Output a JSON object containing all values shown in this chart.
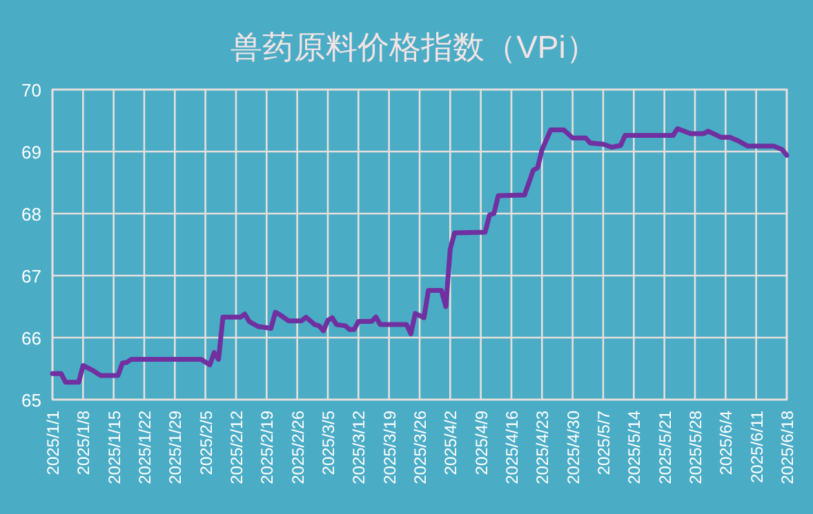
{
  "chart_data": {
    "type": "line",
    "title": "兽药原料价格指数（VPi）",
    "x": [
      "2025-01-01",
      "2025-01-03",
      "2025-01-04",
      "2025-01-07",
      "2025-01-08",
      "2025-01-10",
      "2025-01-12",
      "2025-01-16",
      "2025-01-17",
      "2025-01-18",
      "2025-01-19",
      "2025-02-04",
      "2025-02-06",
      "2025-02-07",
      "2025-02-08",
      "2025-02-09",
      "2025-02-13",
      "2025-02-14",
      "2025-02-15",
      "2025-02-17",
      "2025-02-20",
      "2025-02-21",
      "2025-02-22",
      "2025-02-24",
      "2025-02-27",
      "2025-02-28",
      "2025-03-02",
      "2025-03-03",
      "2025-03-04",
      "2025-03-05",
      "2025-03-06",
      "2025-03-07",
      "2025-03-09",
      "2025-03-10",
      "2025-03-11",
      "2025-03-12",
      "2025-03-15",
      "2025-03-16",
      "2025-03-17",
      "2025-03-23",
      "2025-03-24",
      "2025-03-25",
      "2025-03-27",
      "2025-03-28",
      "2025-03-31",
      "2025-04-01",
      "2025-04-02",
      "2025-04-03",
      "2025-04-10",
      "2025-04-11",
      "2025-04-12",
      "2025-04-13",
      "2025-04-19",
      "2025-04-21",
      "2025-04-22",
      "2025-04-23",
      "2025-04-25",
      "2025-04-28",
      "2025-04-30",
      "2025-05-03",
      "2025-05-04",
      "2025-05-07",
      "2025-05-09",
      "2025-05-11",
      "2025-05-12",
      "2025-05-23",
      "2025-05-24",
      "2025-05-27",
      "2025-05-30",
      "2025-05-31",
      "2025-06-03",
      "2025-06-05",
      "2025-06-07",
      "2025-06-09",
      "2025-06-15",
      "2025-06-17",
      "2025-06-18"
    ],
    "series": [
      {
        "color": "#7030a0",
        "values": [
          65.42,
          65.42,
          65.28,
          65.28,
          65.55,
          65.48,
          65.39,
          65.39,
          65.59,
          65.6,
          65.65,
          65.65,
          65.56,
          65.76,
          65.65,
          66.33,
          66.33,
          66.38,
          66.26,
          66.18,
          66.15,
          66.41,
          66.37,
          66.27,
          66.27,
          66.33,
          66.21,
          66.19,
          66.11,
          66.28,
          66.32,
          66.21,
          66.19,
          66.13,
          66.13,
          66.26,
          66.26,
          66.33,
          66.21,
          66.21,
          66.06,
          66.39,
          66.32,
          66.76,
          66.76,
          66.5,
          67.43,
          67.69,
          67.7,
          67.98,
          68.0,
          68.29,
          68.3,
          68.7,
          68.74,
          69.03,
          69.35,
          69.35,
          69.22,
          69.22,
          69.14,
          69.12,
          69.07,
          69.1,
          69.26,
          69.26,
          69.37,
          69.29,
          69.29,
          69.33,
          69.23,
          69.23,
          69.17,
          69.09,
          69.09,
          69.03,
          68.94
        ]
      }
    ],
    "xlim": [
      "2025-01-01",
      "2025-06-18"
    ],
    "xticks": [
      {
        "value": "2025-01-01",
        "label": "2025/1/1"
      },
      {
        "value": "2025-01-08",
        "label": "2025/1/8"
      },
      {
        "value": "2025-01-15",
        "label": "2025/1/15"
      },
      {
        "value": "2025-01-22",
        "label": "2025/1/22"
      },
      {
        "value": "2025-01-29",
        "label": "2025/1/29"
      },
      {
        "value": "2025-02-05",
        "label": "2025/2/5"
      },
      {
        "value": "2025-02-12",
        "label": "2025/2/12"
      },
      {
        "value": "2025-02-19",
        "label": "2025/2/19"
      },
      {
        "value": "2025-02-26",
        "label": "2025/2/26"
      },
      {
        "value": "2025-03-05",
        "label": "2025/3/5"
      },
      {
        "value": "2025-03-12",
        "label": "2025/3/12"
      },
      {
        "value": "2025-03-19",
        "label": "2025/3/19"
      },
      {
        "value": "2025-03-26",
        "label": "2025/3/26"
      },
      {
        "value": "2025-04-02",
        "label": "2025/4/2"
      },
      {
        "value": "2025-04-09",
        "label": "2025/4/9"
      },
      {
        "value": "2025-04-16",
        "label": "2025/4/16"
      },
      {
        "value": "2025-04-23",
        "label": "2025/4/23"
      },
      {
        "value": "2025-04-30",
        "label": "2025/4/30"
      },
      {
        "value": "2025-05-07",
        "label": "2025/5/7"
      },
      {
        "value": "2025-05-14",
        "label": "2025/5/14"
      },
      {
        "value": "2025-05-21",
        "label": "2025/5/21"
      },
      {
        "value": "2025-05-28",
        "label": "2025/5/28"
      },
      {
        "value": "2025-06-04",
        "label": "2025/6/4"
      },
      {
        "value": "2025-06-11",
        "label": "2025/6/11"
      },
      {
        "value": "2025-06-18",
        "label": "2025/6/18"
      }
    ],
    "ylim": [
      65,
      70
    ],
    "yticks": [
      65,
      66,
      67,
      68,
      69,
      70
    ],
    "grid": true
  }
}
